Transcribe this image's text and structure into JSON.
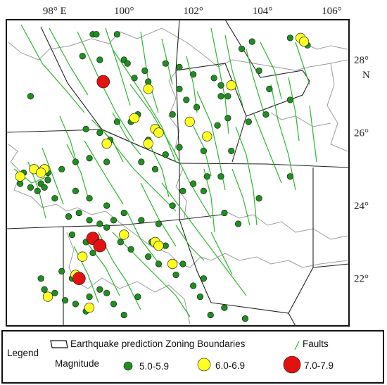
{
  "map": {
    "x_ticks": [
      {
        "lon": 98,
        "label": "98° E"
      },
      {
        "lon": 100,
        "label": "100°"
      },
      {
        "lon": 102,
        "label": "102°"
      },
      {
        "lon": 104,
        "label": "104°"
      },
      {
        "lon": 106,
        "label": "106°"
      }
    ],
    "y_ticks": [
      {
        "lat": 28,
        "label": "28°"
      },
      {
        "lat": 26,
        "label": "26°"
      },
      {
        "lat": 24,
        "label": "24°"
      },
      {
        "lat": 22,
        "label": "22°"
      }
    ],
    "north_label": "N",
    "lon_range": [
      96.6,
      106.5
    ],
    "lat_range": [
      20.7,
      29.1
    ],
    "colors": {
      "fault": "#2fb52f",
      "small": "#1f8f1f",
      "medium": "#ffff22",
      "large": "#e41111",
      "boundary": "#222222",
      "province": "#9a9a9a"
    }
  },
  "legend": {
    "title": "Legend",
    "boundary_label": "Earthquake prediction Zoning Boundaries",
    "faults_label": "Faults",
    "magnitude_label": "Magnitude",
    "classes": [
      {
        "label": "5.0-5.9",
        "color": "#1f8f1f"
      },
      {
        "label": "6.0-6.9",
        "color": "#ffff22"
      },
      {
        "label": "7.0-7.9",
        "color": "#e41111"
      }
    ]
  },
  "quakes": {
    "small": [
      [
        99.1,
        28.7
      ],
      [
        99.2,
        28.7
      ],
      [
        99.8,
        28.7
      ],
      [
        98.8,
        28.1
      ],
      [
        99.3,
        28.0
      ],
      [
        100.0,
        28.0
      ],
      [
        100.1,
        27.9
      ],
      [
        100.6,
        27.7
      ],
      [
        101.2,
        27.9
      ],
      [
        101.6,
        27.8
      ],
      [
        102.0,
        27.6
      ],
      [
        102.6,
        27.5
      ],
      [
        102.8,
        27.3
      ],
      [
        103.0,
        27.0
      ],
      [
        101.6,
        27.2
      ],
      [
        100.7,
        27.4
      ],
      [
        100.3,
        27.5
      ],
      [
        97.3,
        27.0
      ],
      [
        100.4,
        26.5
      ],
      [
        100.2,
        26.3
      ],
      [
        99.8,
        26.3
      ],
      [
        98.9,
        26.1
      ],
      [
        99.3,
        26.0
      ],
      [
        99.6,
        25.8
      ],
      [
        100.7,
        25.8
      ],
      [
        101.6,
        25.6
      ],
      [
        101.4,
        26.5
      ],
      [
        102.7,
        26.2
      ],
      [
        103.0,
        26.4
      ],
      [
        103.6,
        26.3
      ],
      [
        104.1,
        26.5
      ],
      [
        103.1,
        25.5
      ],
      [
        102.3,
        25.5
      ],
      [
        101.2,
        25.4
      ],
      [
        100.9,
        25.0
      ],
      [
        100.5,
        25.2
      ],
      [
        99.5,
        25.2
      ],
      [
        99.0,
        25.3
      ],
      [
        98.6,
        25.2
      ],
      [
        98.2,
        25.0
      ],
      [
        97.8,
        24.9
      ],
      [
        97.6,
        24.6
      ],
      [
        97.8,
        24.7
      ],
      [
        97.1,
        24.9
      ],
      [
        97.0,
        24.6
      ],
      [
        97.3,
        24.5
      ],
      [
        97.5,
        24.4
      ],
      [
        97.7,
        24.5
      ],
      [
        98.0,
        24.2
      ],
      [
        98.6,
        24.4
      ],
      [
        99.0,
        24.2
      ],
      [
        99.5,
        24.0
      ],
      [
        100.0,
        23.8
      ],
      [
        100.5,
        23.6
      ],
      [
        101.0,
        23.5
      ],
      [
        101.4,
        24.0
      ],
      [
        101.7,
        24.4
      ],
      [
        102.0,
        24.6
      ],
      [
        102.4,
        24.8
      ],
      [
        102.8,
        24.8
      ],
      [
        102.3,
        24.4
      ],
      [
        102.9,
        23.8
      ],
      [
        103.3,
        23.5
      ],
      [
        103.9,
        24.2
      ],
      [
        104.8,
        24.8
      ],
      [
        99.7,
        23.6
      ],
      [
        99.5,
        23.4
      ],
      [
        99.3,
        23.5
      ],
      [
        99.0,
        23.6
      ],
      [
        98.7,
        23.8
      ],
      [
        98.4,
        23.7
      ],
      [
        98.5,
        23.2
      ],
      [
        98.9,
        23.0
      ],
      [
        99.1,
        22.7
      ],
      [
        99.4,
        22.9
      ],
      [
        99.9,
        23.0
      ],
      [
        100.2,
        22.8
      ],
      [
        100.7,
        22.6
      ],
      [
        101.0,
        22.4
      ],
      [
        101.2,
        22.9
      ],
      [
        100.8,
        23.0
      ],
      [
        98.2,
        22.2
      ],
      [
        98.5,
        22.0
      ],
      [
        97.6,
        22.0
      ],
      [
        97.7,
        21.7
      ],
      [
        98.0,
        21.6
      ],
      [
        98.3,
        21.4
      ],
      [
        98.6,
        21.3
      ],
      [
        99.0,
        21.5
      ],
      [
        99.3,
        21.7
      ],
      [
        99.5,
        21.6
      ],
      [
        99.7,
        21.3
      ],
      [
        100.0,
        21.0
      ],
      [
        100.4,
        21.5
      ],
      [
        101.7,
        22.4
      ],
      [
        102.0,
        21.8
      ],
      [
        102.2,
        21.5
      ],
      [
        102.5,
        21.0
      ],
      [
        102.9,
        21.2
      ],
      [
        103.5,
        20.9
      ],
      [
        102.3,
        22.0
      ],
      [
        101.5,
        22.1
      ],
      [
        98.9,
        21.1
      ],
      [
        101.8,
        26.9
      ],
      [
        102.1,
        26.7
      ],
      [
        102.8,
        27.0
      ],
      [
        103.4,
        28.3
      ],
      [
        103.7,
        28.5
      ],
      [
        104.8,
        28.6
      ],
      [
        105.3,
        28.4
      ],
      [
        104.2,
        27.2
      ],
      [
        104.8,
        26.9
      ],
      [
        103.9,
        27.7
      ]
    ],
    "medium": [
      [
        101.9,
        26.3
      ],
      [
        102.4,
        25.9
      ],
      [
        100.9,
        26.1
      ],
      [
        101.0,
        26.0
      ],
      [
        100.7,
        25.7
      ],
      [
        100.3,
        26.4
      ],
      [
        99.5,
        25.7
      ],
      [
        97.7,
        25.0
      ],
      [
        97.4,
        25.0
      ],
      [
        97.6,
        24.9
      ],
      [
        97.0,
        24.8
      ],
      [
        100.0,
        23.2
      ],
      [
        100.9,
        23.0
      ],
      [
        101.0,
        22.9
      ],
      [
        101.4,
        22.4
      ],
      [
        98.8,
        22.6
      ],
      [
        98.6,
        22.1
      ],
      [
        99.0,
        21.2
      ],
      [
        97.8,
        21.5
      ],
      [
        100.7,
        27.2
      ],
      [
        103.1,
        27.3
      ],
      [
        105.1,
        28.6
      ],
      [
        105.2,
        28.5
      ]
    ],
    "large": [
      [
        99.4,
        27.4
      ],
      [
        99.1,
        23.1
      ],
      [
        99.3,
        22.9
      ],
      [
        98.7,
        22.0
      ]
    ]
  }
}
